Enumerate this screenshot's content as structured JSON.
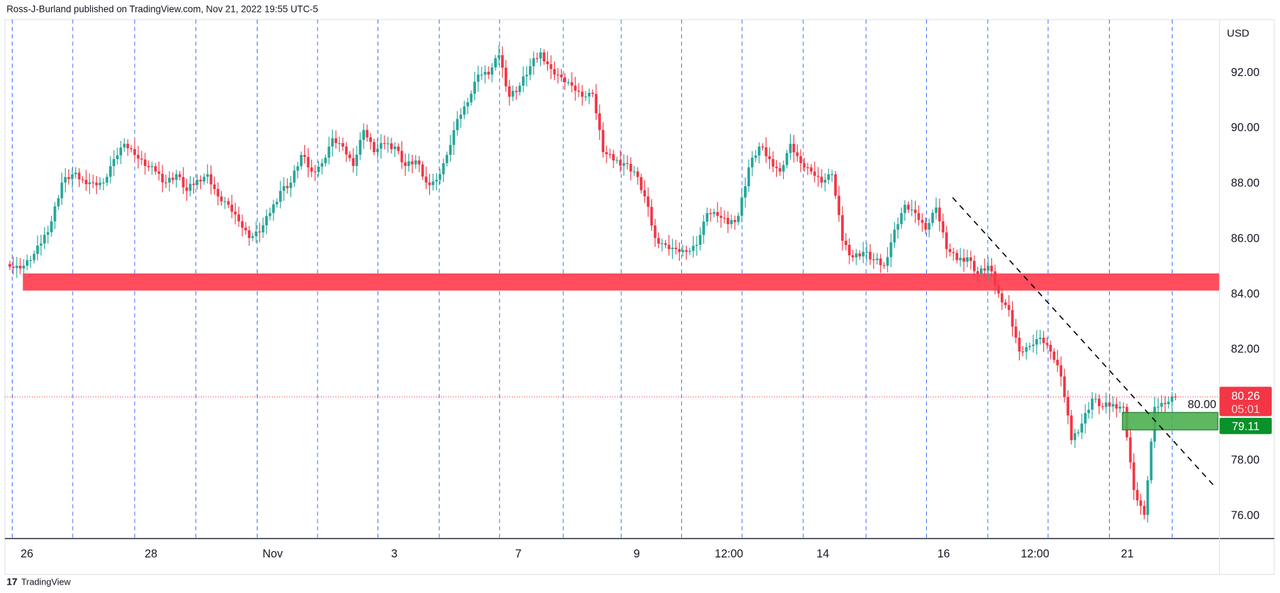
{
  "header": {
    "published": "Ross-J-Burland published on TradingView.com, Nov 21, 2022 19:55 UTC-5"
  },
  "footer": {
    "brand": "TradingView"
  },
  "colors": {
    "up": "#26a69a",
    "down": "#f23645",
    "grid": "#2962ff",
    "zone_red": "#ff4d5e",
    "zone_green": "#4caf50",
    "label_green": "#089229"
  },
  "chart_data": {
    "type": "candlestick",
    "currency": "USD",
    "ylim": [
      75.2,
      94.4
    ],
    "yticks": [
      "92.00",
      "90.00",
      "88.00",
      "86.00",
      "84.00",
      "82.00",
      "80.00",
      "78.00",
      "76.00"
    ],
    "ytick_values": [
      92,
      90,
      88,
      86,
      84,
      82,
      80,
      78,
      76
    ],
    "xticks": [
      "26",
      "28",
      "Nov",
      "3",
      "7",
      "9",
      "12:00",
      "14",
      "16",
      "12:00",
      "21"
    ],
    "closes": [
      84.96,
      84.9,
      85.2,
      85.8,
      86.6,
      88.0,
      88.3,
      88.1,
      88.0,
      88.0,
      88.85,
      89.4,
      89.0,
      88.6,
      88.4,
      88.0,
      88.3,
      87.7,
      88.1,
      88.3,
      87.5,
      87.2,
      86.6,
      86.0,
      86.2,
      86.9,
      87.7,
      88.0,
      89.0,
      88.4,
      88.7,
      89.6,
      89.3,
      88.6,
      89.9,
      89.1,
      89.4,
      89.3,
      88.6,
      88.8,
      88.0,
      88.1,
      89.0,
      90.3,
      90.9,
      91.9,
      91.9,
      92.6,
      91.1,
      91.5,
      92.2,
      92.7,
      92.1,
      91.8,
      91.5,
      91.1,
      91.2,
      89.1,
      88.8,
      88.7,
      88.4,
      87.5,
      86.0,
      85.75,
      85.6,
      85.5,
      85.75,
      86.9,
      86.8,
      86.5,
      86.8,
      88.55,
      89.3,
      88.85,
      88.4,
      89.4,
      88.7,
      88.4,
      88.0,
      88.3,
      85.9,
      85.3,
      85.5,
      85.2,
      85.0,
      86.3,
      87.2,
      86.9,
      86.3,
      87.1,
      85.6,
      85.2,
      85.3,
      84.7,
      85.0,
      84.0,
      83.4,
      81.9,
      82.1,
      82.4,
      81.9,
      81.0,
      78.7,
      79.3,
      80.2,
      79.9,
      80.0,
      79.9,
      76.9,
      76.0,
      79.9,
      80.0,
      80.26
    ],
    "resistance_zone": [
      84.1,
      84.72
    ],
    "support_zone": [
      79.07,
      79.7
    ],
    "trendline": {
      "from": 87.46,
      "to": 77.06
    },
    "last_price": "80.26",
    "countdown": "05:01",
    "support_label": "79.11"
  }
}
